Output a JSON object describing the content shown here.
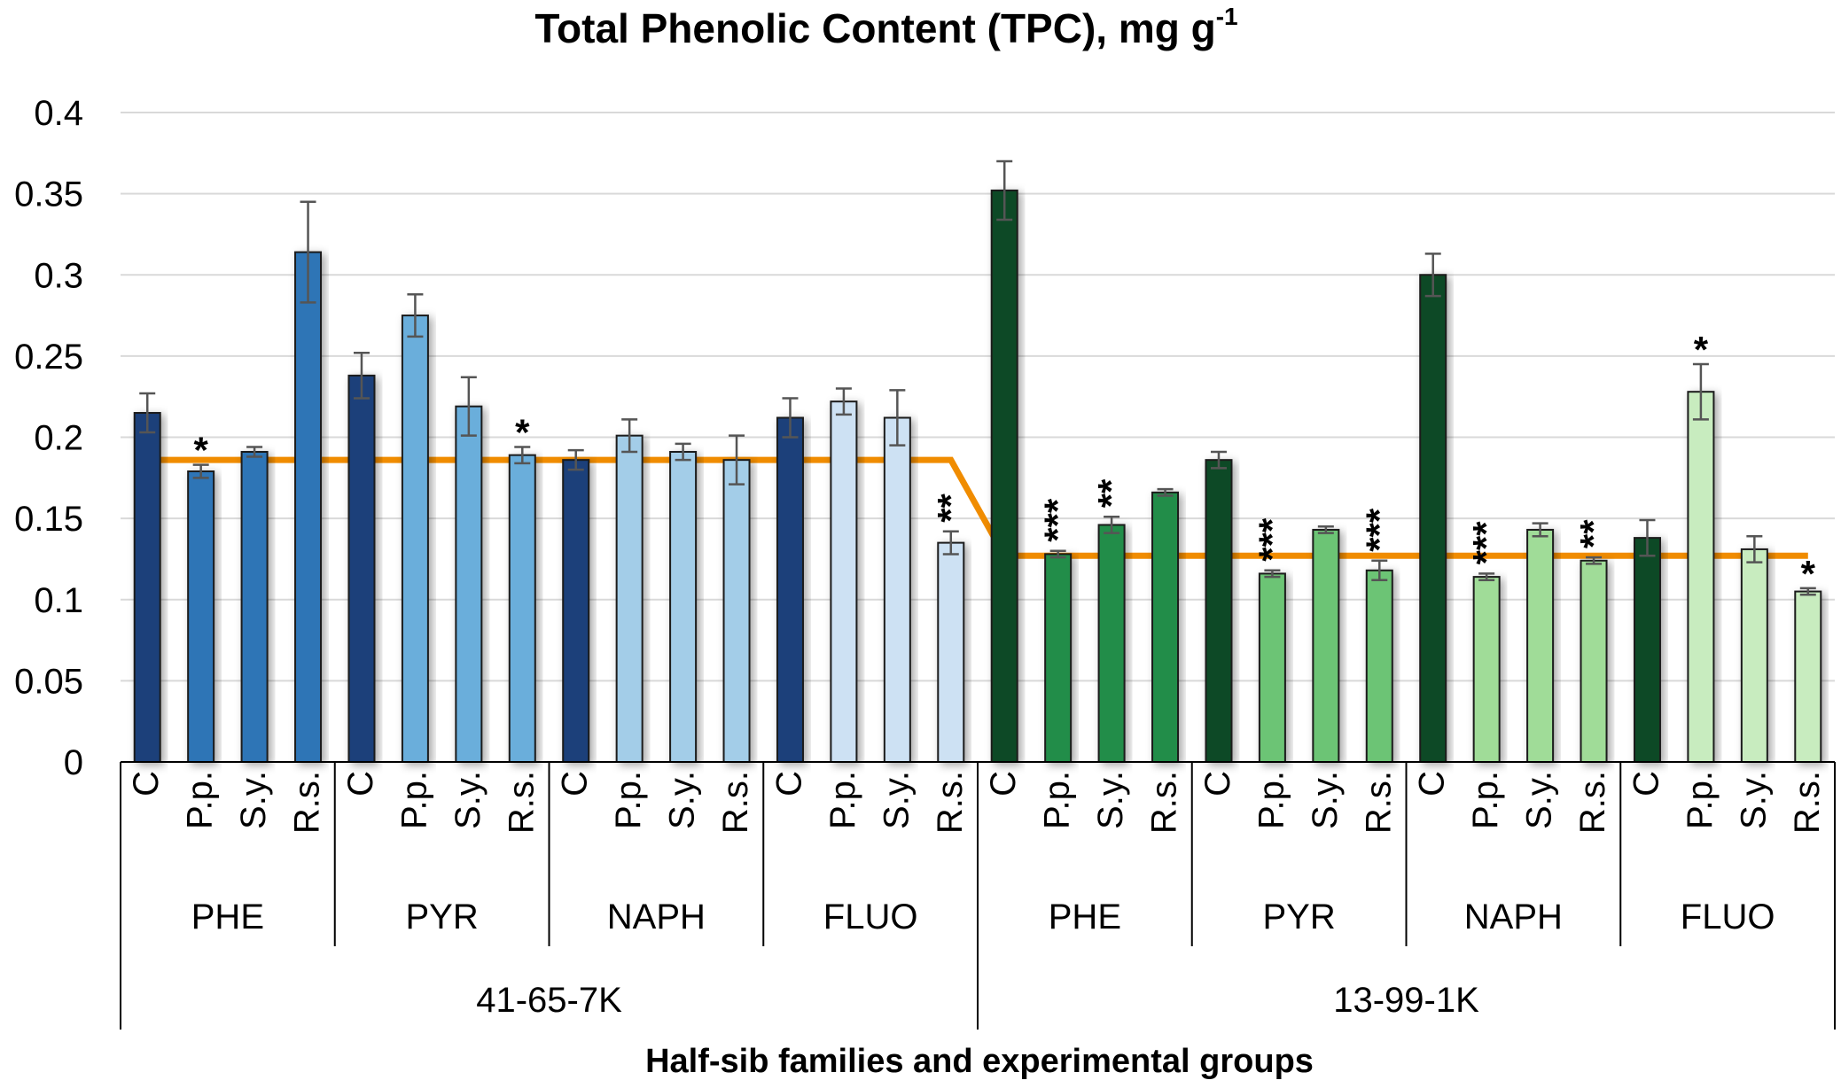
{
  "chart_data": {
    "type": "bar",
    "title": "Total Phenolic Content (TPC), mg g",
    "title_superscript": "-1",
    "xlabel": "Half-sib families and experimental groups",
    "ylabel": "",
    "ylim": [
      0,
      0.4
    ],
    "yticks": [
      "0",
      "0.05",
      "0.1",
      "0.15",
      "0.2",
      "0.25",
      "0.3",
      "0.35",
      "0.4"
    ],
    "grid": true,
    "families": [
      "41-65-7K",
      "13-99-1K"
    ],
    "groups": [
      "PHE",
      "PYR",
      "NAPH",
      "FLUO"
    ],
    "treatments": [
      "C",
      "P.p.",
      "S.y.",
      "R.s."
    ],
    "bars": [
      {
        "family": "41-65-7K",
        "group": "PHE",
        "treatment": "C",
        "value": 0.215,
        "error": 0.012,
        "sig": "",
        "color": "#1a3f7a"
      },
      {
        "family": "41-65-7K",
        "group": "PHE",
        "treatment": "P.p.",
        "value": 0.179,
        "error": 0.004,
        "sig": "*",
        "color": "#2e75b6"
      },
      {
        "family": "41-65-7K",
        "group": "PHE",
        "treatment": "S.y.",
        "value": 0.191,
        "error": 0.003,
        "sig": "",
        "color": "#2e75b6"
      },
      {
        "family": "41-65-7K",
        "group": "PHE",
        "treatment": "R.s.",
        "value": 0.314,
        "error": 0.031,
        "sig": "",
        "color": "#2e75b6"
      },
      {
        "family": "41-65-7K",
        "group": "PYR",
        "treatment": "C",
        "value": 0.238,
        "error": 0.014,
        "sig": "",
        "color": "#1a3f7a"
      },
      {
        "family": "41-65-7K",
        "group": "PYR",
        "treatment": "P.p.",
        "value": 0.275,
        "error": 0.013,
        "sig": "",
        "color": "#6aaedb"
      },
      {
        "family": "41-65-7K",
        "group": "PYR",
        "treatment": "S.y.",
        "value": 0.219,
        "error": 0.018,
        "sig": "",
        "color": "#6aaedb"
      },
      {
        "family": "41-65-7K",
        "group": "PYR",
        "treatment": "R.s.",
        "value": 0.189,
        "error": 0.005,
        "sig": "*",
        "color": "#6aaedb"
      },
      {
        "family": "41-65-7K",
        "group": "NAPH",
        "treatment": "C",
        "value": 0.186,
        "error": 0.006,
        "sig": "",
        "color": "#1a3f7a"
      },
      {
        "family": "41-65-7K",
        "group": "NAPH",
        "treatment": "P.p.",
        "value": 0.201,
        "error": 0.01,
        "sig": "",
        "color": "#a3cde8"
      },
      {
        "family": "41-65-7K",
        "group": "NAPH",
        "treatment": "S.y.",
        "value": 0.191,
        "error": 0.005,
        "sig": "",
        "color": "#a3cde8"
      },
      {
        "family": "41-65-7K",
        "group": "NAPH",
        "treatment": "R.s.",
        "value": 0.186,
        "error": 0.015,
        "sig": "",
        "color": "#a3cde8"
      },
      {
        "family": "41-65-7K",
        "group": "FLUO",
        "treatment": "C",
        "value": 0.212,
        "error": 0.012,
        "sig": "",
        "color": "#1a3f7a"
      },
      {
        "family": "41-65-7K",
        "group": "FLUO",
        "treatment": "P.p.",
        "value": 0.222,
        "error": 0.008,
        "sig": "",
        "color": "#cde1f3"
      },
      {
        "family": "41-65-7K",
        "group": "FLUO",
        "treatment": "S.y.",
        "value": 0.212,
        "error": 0.017,
        "sig": "",
        "color": "#cde1f3"
      },
      {
        "family": "41-65-7K",
        "group": "FLUO",
        "treatment": "R.s.",
        "value": 0.135,
        "error": 0.007,
        "sig": "**",
        "color": "#cde1f3"
      },
      {
        "family": "13-99-1K",
        "group": "PHE",
        "treatment": "C",
        "value": 0.352,
        "error": 0.018,
        "sig": "",
        "color": "#0f4a25"
      },
      {
        "family": "13-99-1K",
        "group": "PHE",
        "treatment": "P.p.",
        "value": 0.128,
        "error": 0.002,
        "sig": "***",
        "color": "#248d4a"
      },
      {
        "family": "13-99-1K",
        "group": "PHE",
        "treatment": "S.y.",
        "value": 0.146,
        "error": 0.005,
        "sig": "**",
        "color": "#248d4a"
      },
      {
        "family": "13-99-1K",
        "group": "PHE",
        "treatment": "R.s.",
        "value": 0.166,
        "error": 0.002,
        "sig": "",
        "color": "#248d4a"
      },
      {
        "family": "13-99-1K",
        "group": "PYR",
        "treatment": "C",
        "value": 0.186,
        "error": 0.005,
        "sig": "",
        "color": "#0f4a25"
      },
      {
        "family": "13-99-1K",
        "group": "PYR",
        "treatment": "P.p.",
        "value": 0.116,
        "error": 0.002,
        "sig": "***",
        "color": "#6cc474"
      },
      {
        "family": "13-99-1K",
        "group": "PYR",
        "treatment": "S.y.",
        "value": 0.143,
        "error": 0.002,
        "sig": "",
        "color": "#6cc474"
      },
      {
        "family": "13-99-1K",
        "group": "PYR",
        "treatment": "R.s.",
        "value": 0.118,
        "error": 0.006,
        "sig": "***",
        "color": "#6cc474"
      },
      {
        "family": "13-99-1K",
        "group": "NAPH",
        "treatment": "C",
        "value": 0.3,
        "error": 0.013,
        "sig": "",
        "color": "#0f4a25"
      },
      {
        "family": "13-99-1K",
        "group": "NAPH",
        "treatment": "P.p.",
        "value": 0.114,
        "error": 0.002,
        "sig": "***",
        "color": "#a0dc98"
      },
      {
        "family": "13-99-1K",
        "group": "NAPH",
        "treatment": "S.y.",
        "value": 0.143,
        "error": 0.004,
        "sig": "",
        "color": "#a0dc98"
      },
      {
        "family": "13-99-1K",
        "group": "NAPH",
        "treatment": "R.s.",
        "value": 0.124,
        "error": 0.002,
        "sig": "**",
        "color": "#a0dc98"
      },
      {
        "family": "13-99-1K",
        "group": "FLUO",
        "treatment": "C",
        "value": 0.138,
        "error": 0.011,
        "sig": "",
        "color": "#0f4a25"
      },
      {
        "family": "13-99-1K",
        "group": "FLUO",
        "treatment": "P.p.",
        "value": 0.228,
        "error": 0.017,
        "sig": "*",
        "color": "#c8ecbf"
      },
      {
        "family": "13-99-1K",
        "group": "FLUO",
        "treatment": "S.y.",
        "value": 0.131,
        "error": 0.008,
        "sig": "",
        "color": "#c8ecbf"
      },
      {
        "family": "13-99-1K",
        "group": "FLUO",
        "treatment": "R.s.",
        "value": 0.105,
        "error": 0.002,
        "sig": "*",
        "color": "#c8ecbf"
      }
    ],
    "reference_line": {
      "color": "#f08c00",
      "segments": [
        {
          "family": "41-65-7K",
          "value": 0.186
        },
        {
          "family": "13-99-1K",
          "value": 0.127
        }
      ]
    },
    "colors": {
      "grid": "#d9d9d9",
      "axis": "#000000",
      "error_bar": "#555555",
      "bar_outline": "#1a1a1a"
    }
  }
}
